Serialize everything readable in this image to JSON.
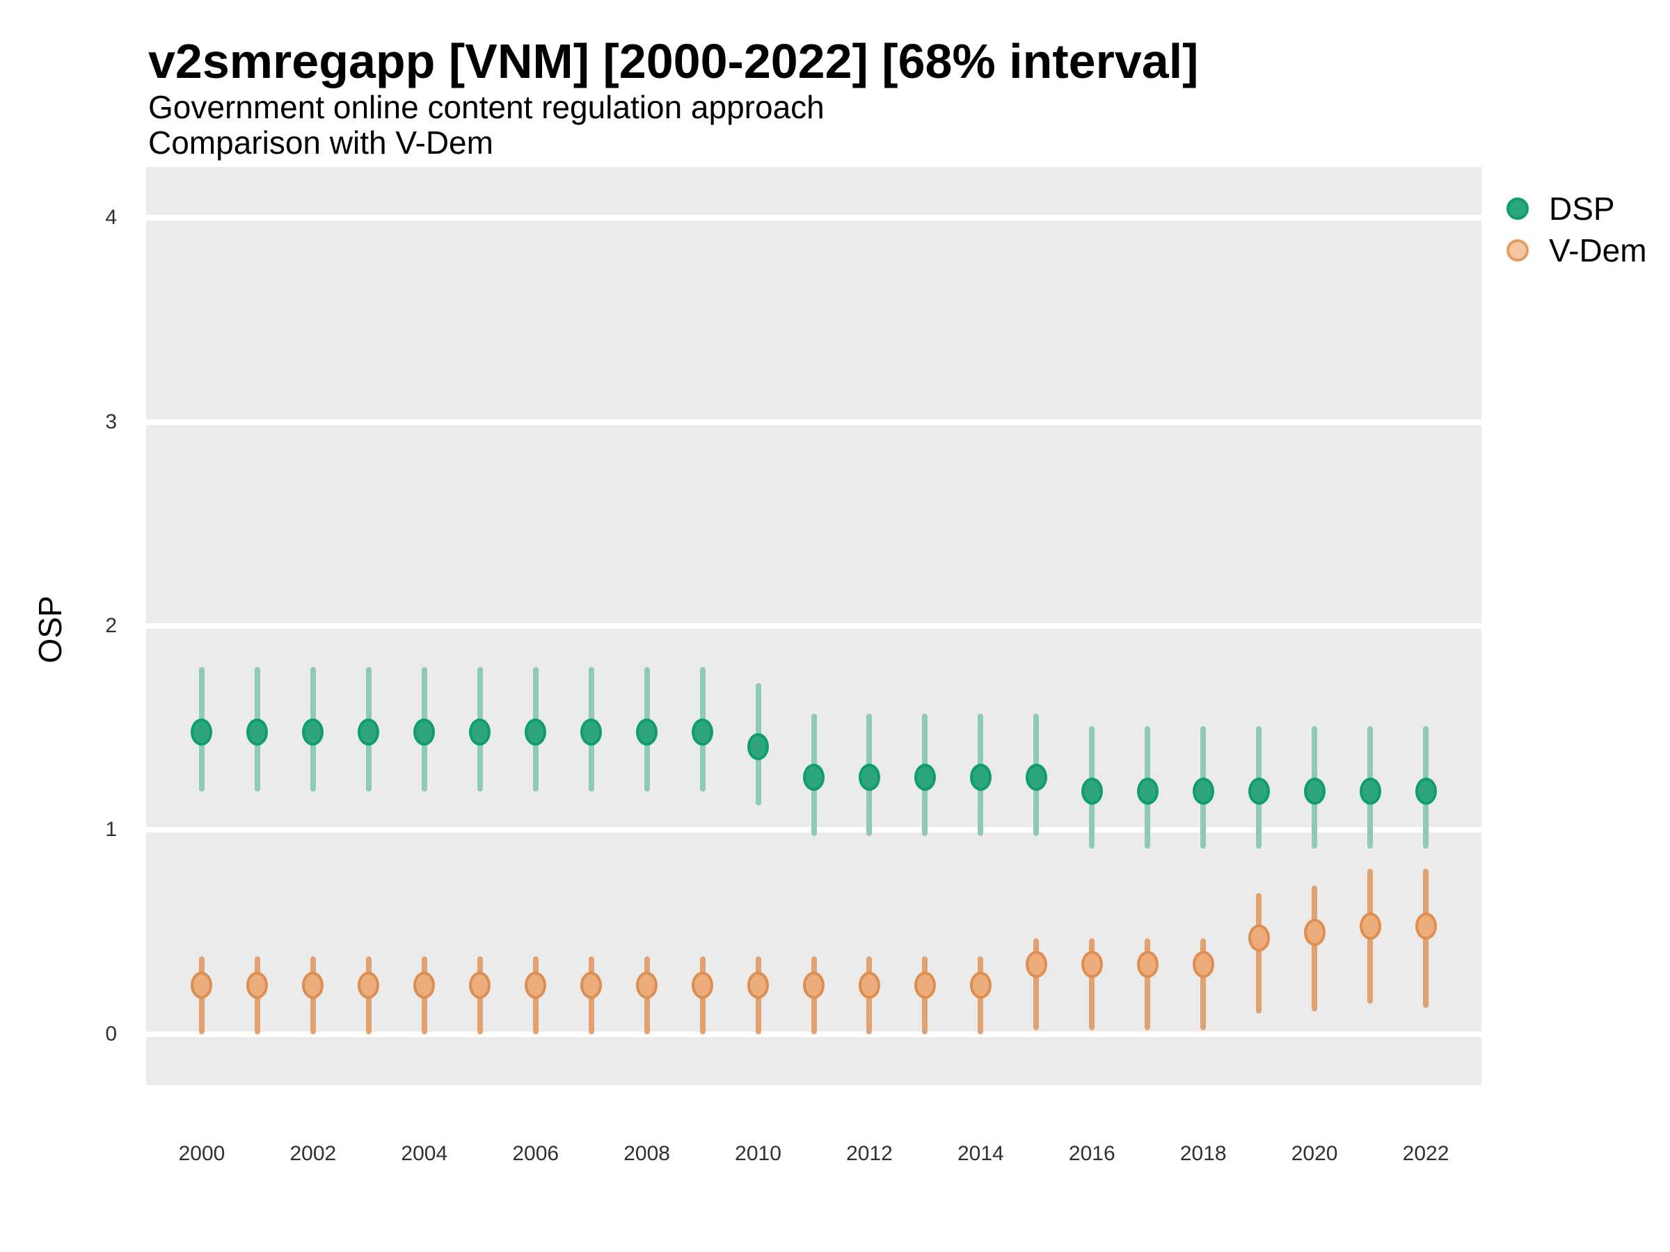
{
  "header": {
    "title": "v2smregapp [VNM] [2000-2022] [68% interval]",
    "subtitle1": "Government online content regulation approach",
    "subtitle2": "Comparison with V-Dem"
  },
  "axes": {
    "y_label": "OSP",
    "y_ticks": [
      0,
      1,
      2,
      3,
      4
    ],
    "x_ticks": [
      2000,
      2002,
      2004,
      2006,
      2008,
      2010,
      2012,
      2014,
      2016,
      2018,
      2020,
      2022
    ]
  },
  "legend": {
    "entries": [
      {
        "label": "DSP",
        "fill": "#2BA77D",
        "stroke": "#0E9D70"
      },
      {
        "label": "V-Dem",
        "fill": "#F4C6A1",
        "stroke": "#E79C63"
      }
    ]
  },
  "colors": {
    "panel_background": "#EBEBEB",
    "gridline": "#FFFFFF",
    "dsp_point": "#2EA67C",
    "dsp_point_stroke": "#0E9D70",
    "dsp_interval": "#8FCBB3",
    "vdem_point": "#ECAC7C",
    "vdem_point_stroke": "#DE8E51",
    "vdem_interval": "#E2A171"
  },
  "chart_data": {
    "type": "scatter",
    "title": "v2smregapp [VNM] [2000-2022] [68% interval]",
    "subtitle": "Government online content regulation approach",
    "comparison_note": "Comparison with V-Dem",
    "interval": "68%",
    "xlabel": "",
    "ylabel": "OSP",
    "ylim": [
      -0.25,
      4.25
    ],
    "xlim": [
      1999,
      2023
    ],
    "grid": "on",
    "legend_position": "right",
    "x": [
      2000,
      2001,
      2002,
      2003,
      2004,
      2005,
      2006,
      2007,
      2008,
      2009,
      2010,
      2011,
      2012,
      2013,
      2014,
      2015,
      2016,
      2017,
      2018,
      2019,
      2020,
      2021,
      2022
    ],
    "series": [
      {
        "name": "DSP",
        "point_fill": "#2EA67C",
        "point_stroke": "#0E9D70",
        "bar_color": "#8FCBB3",
        "means": [
          1.48,
          1.48,
          1.48,
          1.48,
          1.48,
          1.48,
          1.48,
          1.48,
          1.48,
          1.48,
          1.41,
          1.26,
          1.26,
          1.26,
          1.26,
          1.26,
          1.19,
          1.19,
          1.19,
          1.19,
          1.19,
          1.19,
          1.19
        ],
        "lo": [
          1.19,
          1.19,
          1.19,
          1.19,
          1.19,
          1.19,
          1.19,
          1.19,
          1.19,
          1.19,
          1.12,
          0.97,
          0.97,
          0.97,
          0.97,
          0.97,
          0.91,
          0.91,
          0.91,
          0.91,
          0.91,
          0.91,
          0.91
        ],
        "hi": [
          1.8,
          1.8,
          1.8,
          1.8,
          1.8,
          1.8,
          1.8,
          1.8,
          1.8,
          1.8,
          1.72,
          1.57,
          1.57,
          1.57,
          1.57,
          1.57,
          1.51,
          1.51,
          1.51,
          1.51,
          1.51,
          1.51,
          1.51
        ]
      },
      {
        "name": "V-Dem",
        "point_fill": "#ECAC7C",
        "point_stroke": "#DE8E51",
        "bar_color": "#E2A171",
        "means": [
          0.24,
          0.24,
          0.24,
          0.24,
          0.24,
          0.24,
          0.24,
          0.24,
          0.24,
          0.24,
          0.24,
          0.24,
          0.24,
          0.24,
          0.24,
          0.34,
          0.34,
          0.34,
          0.34,
          0.47,
          0.5,
          0.53,
          0.53
        ],
        "lo": [
          0.0,
          0.0,
          0.0,
          0.0,
          0.0,
          0.0,
          0.0,
          0.0,
          0.0,
          0.0,
          0.0,
          0.0,
          0.0,
          0.0,
          0.0,
          0.02,
          0.02,
          0.02,
          0.02,
          0.1,
          0.11,
          0.15,
          0.13
        ],
        "hi": [
          0.38,
          0.38,
          0.38,
          0.38,
          0.38,
          0.38,
          0.38,
          0.38,
          0.38,
          0.38,
          0.38,
          0.38,
          0.38,
          0.38,
          0.38,
          0.47,
          0.47,
          0.47,
          0.47,
          0.69,
          0.73,
          0.81,
          0.81
        ]
      }
    ]
  }
}
